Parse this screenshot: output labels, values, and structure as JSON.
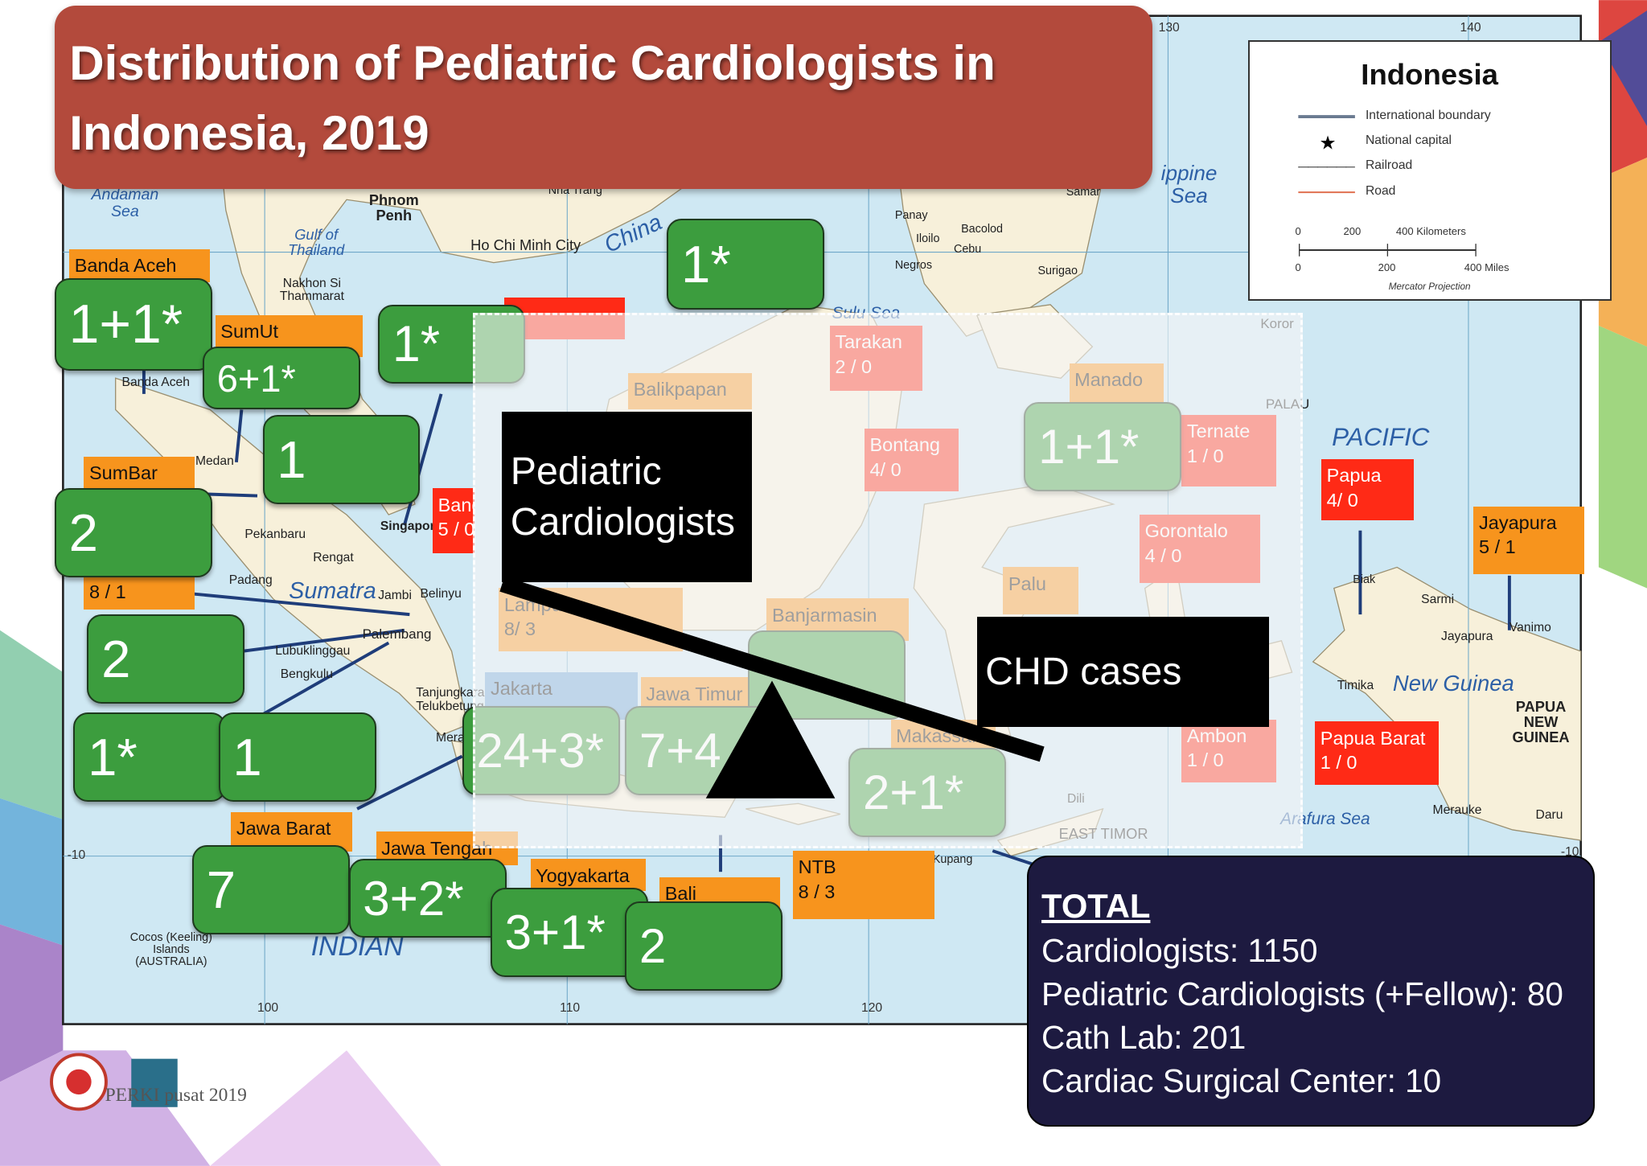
{
  "title": "Distribution of Pediatric Cardiologists in Indonesia, 2019",
  "legend": {
    "title": "Indonesia",
    "items": [
      "International boundary",
      "National capital",
      "Railroad",
      "Road"
    ],
    "km_scale": [
      "0",
      "200",
      "400 Kilometers"
    ],
    "mi_scale": [
      "0",
      "200",
      "400 Miles"
    ],
    "projection": "Mercator Projection"
  },
  "map_labels": [
    "Andaman Sea",
    "Phnom Penh",
    "Gulf of Thailand",
    "Nakhon Si Thammarat",
    "Nha Trang",
    "Ho Chi Minh City",
    "China",
    "Sulu Sea",
    "ippine Sea",
    "Panay",
    "Iloilo",
    "Cebu",
    "Bacolod",
    "Negros",
    "Surigao",
    "Samar",
    "Koror",
    "PALAU",
    "PACIFIC",
    "Banda Aceh",
    "Medan",
    "Pekanbaru",
    "Rengat",
    "Sumatra",
    "Padang",
    "Jambi",
    "Belinyu",
    "Palembang",
    "Lubuklinggau",
    "Bengkulu",
    "Tanjungkarang-Telukbetung",
    "Merak",
    "Singapore",
    "Biak",
    "Sarmi",
    "Jayapura",
    "Vanimo",
    "Timika",
    "New Guinea",
    "PAPUA NEW GUINEA",
    "Merauke",
    "Daru",
    "Arafura Sea",
    "EAST TIMOR",
    "Dili",
    "Kupang",
    "Cocos (Keeling) Islands (AUSTRALIA)",
    "INDIAN"
  ],
  "grid_labels": [
    "100",
    "110",
    "120",
    "130",
    "140",
    "-10",
    "-10"
  ],
  "regions": [
    {
      "name": "Banda Aceh"
    },
    {
      "name": "SumUt"
    },
    {
      "name": "SumBar"
    },
    {
      "count": "8 / 1"
    },
    {
      "name": "Bangka",
      "count": "5 / 0"
    },
    {
      "name": "Jawa Barat"
    },
    {
      "name": "Jawa Tengah"
    },
    {
      "name": "Yogyakarta"
    },
    {
      "name": "Bali"
    },
    {
      "name": "NTB",
      "count": "8 / 3"
    },
    {
      "name": "Papua",
      "count": "4/ 0"
    },
    {
      "name": "Jayapura",
      "count": "5 / 1"
    },
    {
      "name": "Papua Barat",
      "count": "1 / 0"
    },
    {
      "name": "Tarakan",
      "count": "2 / 0"
    },
    {
      "name": "Balikpapan"
    },
    {
      "name": "Bontang",
      "count": "4/ 0"
    },
    {
      "name": "Manado"
    },
    {
      "name": "Ternate",
      "count": "1 / 0"
    },
    {
      "name": "Gorontalo",
      "count": "4 / 0"
    },
    {
      "name": "Palu"
    },
    {
      "name": "Lampung",
      "count": "8/ 3"
    },
    {
      "name": "Banjarmasin"
    },
    {
      "name": "Jakarta"
    },
    {
      "name": "Jawa Timur"
    },
    {
      "name": "Makassar"
    },
    {
      "name": "Ambon",
      "count": "1 / 0"
    }
  ],
  "pediatric_counts": [
    "1+1*",
    "6+1*",
    "1*",
    "1",
    "2",
    "2",
    "1*",
    "1",
    "7",
    "3+2*",
    "3+1*",
    "2",
    "1*",
    "1+1*",
    "24+3*",
    "7+4",
    "2+1*"
  ],
  "overlay": {
    "left_label": "Pediatric Cardiologists",
    "right_label": "CHD cases"
  },
  "total": {
    "heading": "TOTAL",
    "lines": [
      "Cardiologists: 1150",
      "Pediatric Cardiologists (+Fellow): 80",
      "Cath Lab: 201",
      "Cardiac Surgical Center: 10"
    ]
  },
  "footer": "PERKI pusat 2019"
}
